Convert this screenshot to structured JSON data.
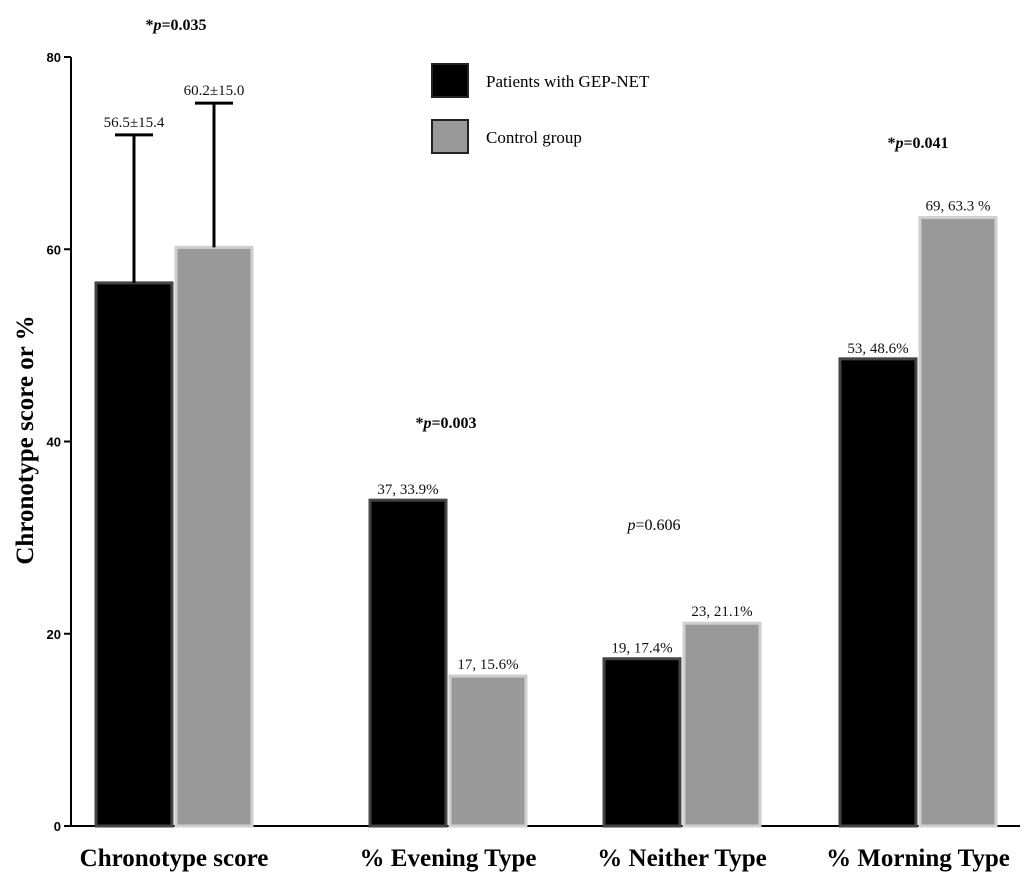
{
  "chart_data": {
    "type": "bar",
    "ylabel": "Chronotype score or %",
    "ylim": [
      0,
      80
    ],
    "yticks": [
      "0",
      "20",
      "40",
      "60",
      "80"
    ],
    "categories": [
      "Chronotype score",
      "% Evening Type",
      "% Neither Type",
      "% Morning Type"
    ],
    "series": [
      {
        "name": "Patients with GEP-NET",
        "color": "#000000",
        "values": [
          56.5,
          33.9,
          17.4,
          48.6
        ],
        "labels": [
          "56.5±15.4",
          "37, 33.9%",
          "19, 17.4%",
          "53, 48.6%"
        ],
        "error": [
          15.4,
          null,
          null,
          null
        ]
      },
      {
        "name": "Control group",
        "color": "#999999",
        "values": [
          60.2,
          15.6,
          21.1,
          63.3
        ],
        "labels": [
          "60.2±15.0",
          "17, 15.6%",
          "23, 21.1%",
          "69, 63.3 %"
        ],
        "error": [
          15.0,
          null,
          null,
          null
        ]
      }
    ],
    "p_values": [
      {
        "star": "*",
        "p": "p",
        "rest": "=0.035",
        "bold": true
      },
      {
        "star": "*",
        "p": "p",
        "rest": "=0.003",
        "bold": true
      },
      {
        "star": "",
        "p": "p",
        "rest": "=0.606",
        "bold": false
      },
      {
        "star": "*",
        "p": "p",
        "rest": "=0.041",
        "bold": true
      }
    ],
    "legend_position": "top-center"
  }
}
